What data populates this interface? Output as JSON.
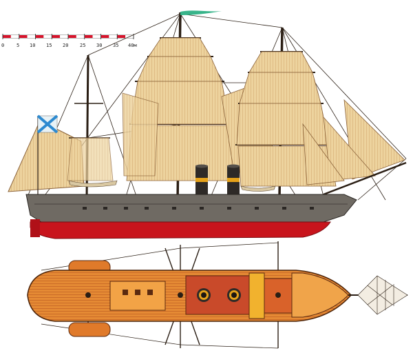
{
  "scale_bar": {
    "ticks": [
      "0",
      "5",
      "10",
      "15",
      "20",
      "25",
      "30",
      "35",
      "40м"
    ],
    "segment_colors": [
      "#d8122a",
      "#ffffff"
    ]
  },
  "colors": {
    "hull_upper": "#6f6a63",
    "hull_lower": "#c8141c",
    "sail": "#e9c98f",
    "sail_line": "#b9874e",
    "rigging": "#2a1e14",
    "deck": "#e07a2a",
    "deck_dark": "#a8461c",
    "funnel": "#2e2a27",
    "funnel_band": "#e6a21a",
    "flag_blue": "#2d8ad0",
    "flag_white": "#e8f2f6"
  },
  "icons": {
    "ensign": "st-andrew-ensign-icon",
    "pennant": "masthead-pennant-icon"
  }
}
